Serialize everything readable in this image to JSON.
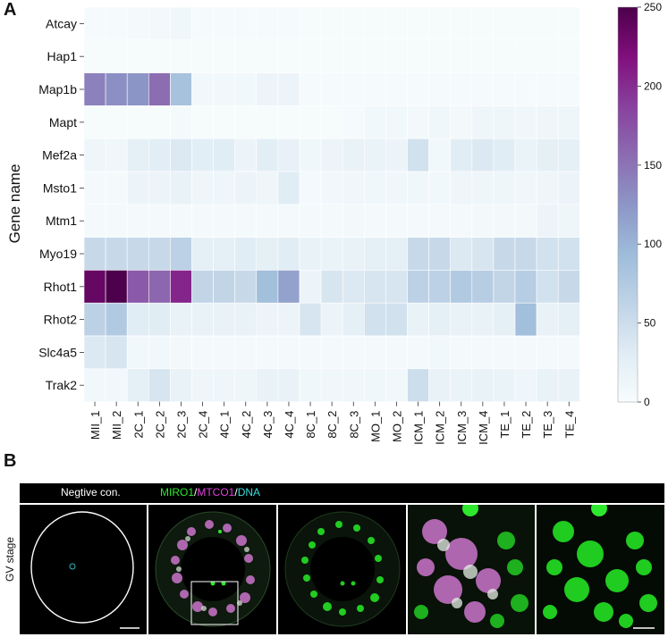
{
  "panel_a_label": "A",
  "panel_b_label": "B",
  "chart_data": {
    "type": "heatmap",
    "ylabel": "Gene name",
    "xlabel": "",
    "genes": [
      "Atcay",
      "Hap1",
      "Map1b",
      "Mapt",
      "Mef2a",
      "Msto1",
      "Mtm1",
      "Myo19",
      "Rhot1",
      "Rhot2",
      "Slc4a5",
      "Trak2"
    ],
    "samples": [
      "MII_1",
      "MII_2",
      "2C_1",
      "2C_2",
      "2C_3",
      "2C_4",
      "4C_1",
      "4C_2",
      "4C_3",
      "4C_4",
      "8C_1",
      "8C_2",
      "8C_3",
      "MO_1",
      "MO_2",
      "ICM_1",
      "ICM_2",
      "ICM_3",
      "ICM_4",
      "TE_1",
      "TE_2",
      "TE_3",
      "TE_4"
    ],
    "values": [
      [
        3,
        3,
        4,
        6,
        10,
        3,
        3,
        3,
        3,
        3,
        2,
        2,
        2,
        2,
        2,
        2,
        2,
        2,
        2,
        2,
        2,
        2,
        2
      ],
      [
        2,
        2,
        2,
        2,
        2,
        2,
        2,
        2,
        2,
        2,
        2,
        2,
        2,
        2,
        2,
        2,
        2,
        2,
        2,
        2,
        2,
        2,
        2
      ],
      [
        140,
        130,
        125,
        155,
        85,
        8,
        8,
        8,
        15,
        15,
        3,
        3,
        3,
        3,
        3,
        3,
        3,
        3,
        3,
        3,
        3,
        3,
        3
      ],
      [
        2,
        2,
        2,
        2,
        4,
        2,
        2,
        2,
        2,
        2,
        2,
        2,
        3,
        8,
        8,
        6,
        10,
        6,
        12,
        12,
        10,
        12,
        12
      ],
      [
        12,
        10,
        25,
        28,
        35,
        28,
        30,
        15,
        28,
        22,
        10,
        15,
        20,
        18,
        15,
        45,
        8,
        30,
        35,
        30,
        18,
        25,
        25
      ],
      [
        4,
        4,
        15,
        15,
        20,
        12,
        12,
        15,
        12,
        30,
        5,
        8,
        10,
        10,
        10,
        10,
        8,
        12,
        12,
        12,
        10,
        12,
        15
      ],
      [
        4,
        4,
        4,
        4,
        4,
        4,
        4,
        4,
        4,
        4,
        4,
        4,
        6,
        4,
        4,
        4,
        4,
        4,
        6,
        6,
        6,
        15,
        12
      ],
      [
        55,
        55,
        55,
        55,
        65,
        25,
        25,
        30,
        25,
        30,
        20,
        18,
        20,
        25,
        25,
        55,
        55,
        35,
        40,
        55,
        55,
        45,
        45
      ],
      [
        235,
        250,
        170,
        160,
        205,
        60,
        60,
        55,
        90,
        115,
        15,
        40,
        35,
        40,
        40,
        65,
        65,
        75,
        70,
        60,
        70,
        45,
        55
      ],
      [
        65,
        75,
        30,
        30,
        20,
        20,
        20,
        20,
        15,
        15,
        40,
        15,
        25,
        45,
        45,
        20,
        25,
        20,
        20,
        25,
        90,
        20,
        25
      ],
      [
        35,
        40,
        8,
        8,
        6,
        4,
        4,
        4,
        4,
        4,
        4,
        4,
        4,
        4,
        4,
        4,
        8,
        4,
        4,
        4,
        4,
        4,
        4
      ],
      [
        8,
        8,
        25,
        40,
        20,
        12,
        12,
        12,
        20,
        20,
        10,
        10,
        10,
        10,
        8,
        50,
        20,
        18,
        20,
        18,
        12,
        20,
        20
      ]
    ],
    "colorbar": {
      "min": 0,
      "max": 250,
      "ticks": [
        0,
        50,
        100,
        150,
        200,
        250
      ]
    },
    "colormap": [
      "#f7fcfd",
      "#e0ecf4",
      "#bfd3e6",
      "#9ebcda",
      "#8c96c6",
      "#8c6bb1",
      "#88419d",
      "#810f7c",
      "#4d004b"
    ]
  },
  "microscopy": {
    "negative_control_label": "Negtive con.",
    "legend_miro1": "MIRO1",
    "legend_sep1": "/",
    "legend_mtco1": "MTCO1",
    "legend_sep2": "/",
    "legend_dna": "DNA",
    "stage_label": "GV stage"
  }
}
